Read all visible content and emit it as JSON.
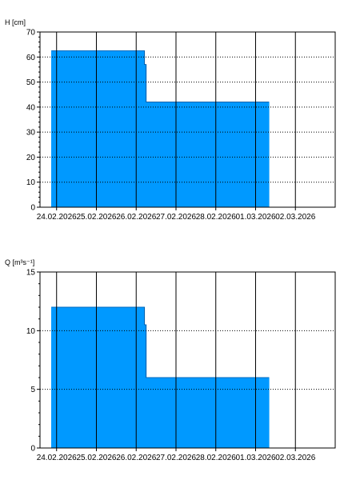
{
  "colors": {
    "fill": "#0099ff",
    "stroke": "#003a7a",
    "grid": "#000000",
    "background": "#ffffff"
  },
  "chart_data": [
    {
      "type": "area",
      "ylabel": "H [cm]",
      "xlabel": "",
      "ylim": [
        0,
        70
      ],
      "yticks": [
        0,
        10,
        20,
        30,
        40,
        50,
        60,
        70
      ],
      "x_tick_labels": [
        "24.02.2026",
        "25.02.2026",
        "26.02.2026",
        "27.02.2026",
        "28.02.2026",
        "01.03.2026",
        "02.03.2026"
      ],
      "xlim": [
        "2026-02-23T14:00",
        "2026-03-03T00:00"
      ],
      "grid": "dotted horizontal, solid vertical",
      "series": [
        {
          "x": [
            "2026-02-23T21:00",
            "2026-02-26T05:00",
            "2026-02-26T05:00",
            "2026-02-26T06:00",
            "2026-02-26T06:00",
            "2026-03-01T08:00"
          ],
          "values": [
            62.5,
            62.5,
            57,
            57,
            42,
            42
          ]
        }
      ]
    },
    {
      "type": "area",
      "ylabel": "Q [m³s⁻¹]",
      "xlabel": "",
      "ylim": [
        0,
        15
      ],
      "yticks": [
        0,
        5,
        10,
        15
      ],
      "x_tick_labels": [
        "24.02.2026",
        "25.02.2026",
        "26.02.2026",
        "27.02.2026",
        "28.02.2026",
        "01.03.2026",
        "02.03.2026"
      ],
      "xlim": [
        "2026-02-23T14:00",
        "2026-03-03T00:00"
      ],
      "grid": "dotted horizontal, solid vertical",
      "series": [
        {
          "x": [
            "2026-02-23T21:00",
            "2026-02-26T05:00",
            "2026-02-26T05:00",
            "2026-02-26T06:00",
            "2026-02-26T06:00",
            "2026-03-01T08:00"
          ],
          "values": [
            12,
            12,
            10.5,
            10.5,
            6,
            6
          ]
        }
      ]
    }
  ]
}
